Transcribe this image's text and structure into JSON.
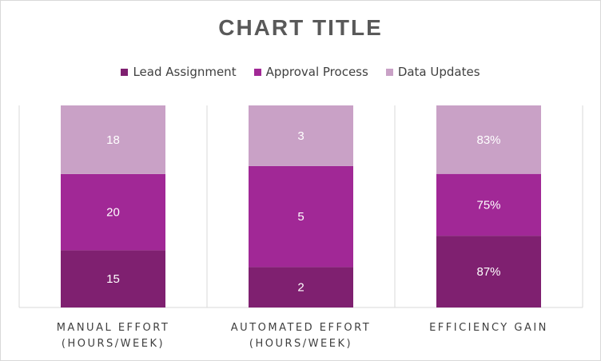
{
  "chart_data": {
    "type": "bar",
    "stacked": true,
    "title": "CHART TITLE",
    "categories": [
      [
        "MANUAL EFFORT",
        "(HOURS/WEEK)"
      ],
      [
        "AUTOMATED EFFORT",
        "(HOURS/WEEK)"
      ],
      [
        "EFFICIENCY GAIN"
      ]
    ],
    "series": [
      {
        "name": "Lead Assignment",
        "color": "#7f2070",
        "values": [
          15,
          2,
          87
        ],
        "labels": [
          "15",
          "2",
          "87%"
        ]
      },
      {
        "name": "Approval Process",
        "color": "#a12896",
        "values": [
          20,
          5,
          75
        ],
        "labels": [
          "20",
          "5",
          "75%"
        ]
      },
      {
        "name": "Data Updates",
        "color": "#c9a1c6",
        "values": [
          18,
          3,
          83
        ],
        "labels": [
          "18",
          "3",
          "83%"
        ]
      }
    ],
    "normalized": true,
    "legend_position": "top",
    "grid": false
  }
}
